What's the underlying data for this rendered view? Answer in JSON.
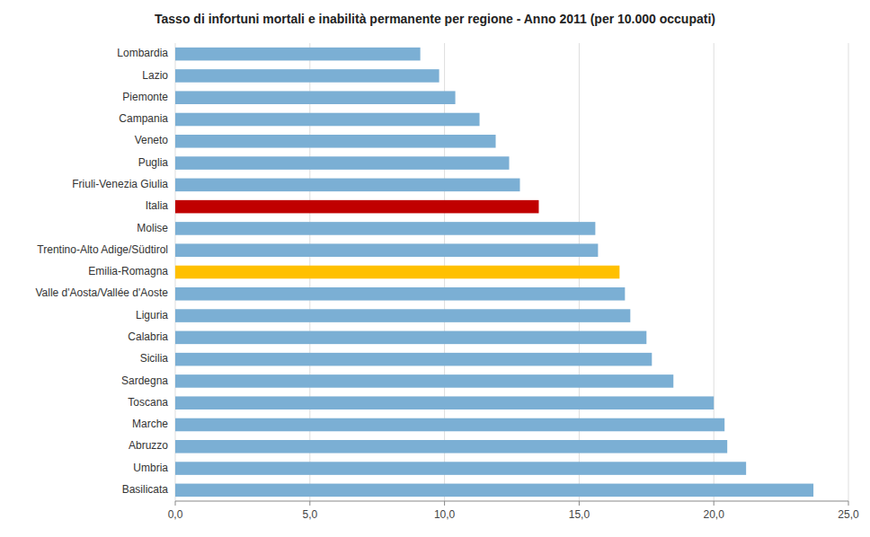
{
  "chart_data": {
    "type": "bar",
    "orientation": "horizontal",
    "title": "Tasso di infortuni mortali e inabilità permanente per regione - Anno 2011  (per 10.000 occupati)",
    "categories": [
      "Lombardia",
      "Lazio",
      "Piemonte",
      "Campania",
      "Veneto",
      "Puglia",
      "Friuli-Venezia Giulia",
      "Italia",
      "Molise",
      "Trentino-Alto Adige/Südtirol",
      "Emilia-Romagna",
      "Valle d'Aosta/Vallée d'Aoste",
      "Liguria",
      "Calabria",
      "Sicilia",
      "Sardegna",
      "Toscana",
      "Marche",
      "Abruzzo",
      "Umbria",
      "Basilicata"
    ],
    "values": [
      9.1,
      9.8,
      10.4,
      11.3,
      11.9,
      12.4,
      12.8,
      13.5,
      15.6,
      15.7,
      16.5,
      16.7,
      16.9,
      17.5,
      17.7,
      18.5,
      20.0,
      20.4,
      20.5,
      21.2,
      23.7
    ],
    "colors": [
      "#7BAFD4",
      "#7BAFD4",
      "#7BAFD4",
      "#7BAFD4",
      "#7BAFD4",
      "#7BAFD4",
      "#7BAFD4",
      "#C00000",
      "#7BAFD4",
      "#7BAFD4",
      "#FFC000",
      "#7BAFD4",
      "#7BAFD4",
      "#7BAFD4",
      "#7BAFD4",
      "#7BAFD4",
      "#7BAFD4",
      "#7BAFD4",
      "#7BAFD4",
      "#7BAFD4",
      "#7BAFD4"
    ],
    "xlim": [
      0,
      25
    ],
    "xticks": [
      {
        "value": 0.0,
        "label": "0,0"
      },
      {
        "value": 5.0,
        "label": "5,0"
      },
      {
        "value": 10.0,
        "label": "10,0"
      },
      {
        "value": 15.0,
        "label": "15,0"
      },
      {
        "value": 20.0,
        "label": "20,0"
      },
      {
        "value": 25.0,
        "label": "25,0"
      }
    ],
    "grid": true
  }
}
